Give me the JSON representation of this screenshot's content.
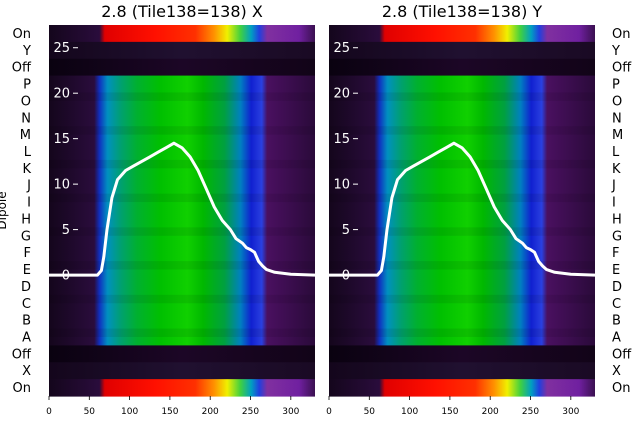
{
  "chart_data": [
    {
      "type": "heatmap",
      "title": "2.8 (Tile138=138) X",
      "ylabel": "Dipole",
      "dipole_rows": [
        "On",
        "Y",
        "Off",
        "P",
        "O",
        "N",
        "M",
        "L",
        "K",
        "J",
        "I",
        "H",
        "G",
        "F",
        "E",
        "D",
        "C",
        "B",
        "A",
        "Off",
        "X",
        "On"
      ],
      "xlim": [
        0,
        330
      ],
      "xticks": [
        0,
        50,
        100,
        150,
        200,
        250,
        300
      ],
      "overlay_ylim": [
        -13.3,
        27.5
      ],
      "overlay_yticks": [
        0,
        5,
        10,
        15,
        20,
        25
      ],
      "series": [
        {
          "name": "",
          "x": [
            0,
            60,
            65,
            68,
            72,
            78,
            85,
            95,
            105,
            115,
            125,
            135,
            145,
            155,
            165,
            175,
            185,
            195,
            205,
            215,
            225,
            232,
            240,
            245,
            250,
            255,
            260,
            265,
            270,
            280,
            300,
            330
          ],
          "y": [
            0,
            0,
            0.5,
            2,
            5,
            8.5,
            10.5,
            11.5,
            12,
            12.5,
            13,
            13.5,
            14,
            14.5,
            14,
            13,
            11.5,
            9.5,
            7.5,
            6,
            5,
            4,
            3.5,
            3,
            2.8,
            2.5,
            1.5,
            1,
            0.6,
            0.3,
            0.1,
            0
          ]
        }
      ]
    },
    {
      "type": "heatmap",
      "title": "2.8 (Tile138=138) Y",
      "dipole_rows": [
        "On",
        "Y",
        "Off",
        "P",
        "O",
        "N",
        "M",
        "L",
        "K",
        "J",
        "I",
        "H",
        "G",
        "F",
        "E",
        "D",
        "C",
        "B",
        "A",
        "Off",
        "X",
        "On"
      ],
      "xlim": [
        0,
        330
      ],
      "xticks": [
        0,
        50,
        100,
        150,
        200,
        250,
        300
      ],
      "overlay_ylim": [
        -13.3,
        27.5
      ],
      "overlay_yticks": [
        0,
        5,
        10,
        15,
        20,
        25
      ],
      "series": [
        {
          "name": "",
          "x": [
            0,
            60,
            65,
            68,
            72,
            78,
            85,
            95,
            105,
            115,
            125,
            135,
            145,
            155,
            165,
            175,
            185,
            195,
            205,
            215,
            225,
            232,
            240,
            245,
            250,
            255,
            260,
            265,
            270,
            280,
            300,
            330
          ],
          "y": [
            0,
            0,
            0.5,
            2,
            5,
            8.5,
            10.5,
            11.5,
            12,
            12.5,
            13,
            13.5,
            14,
            14.5,
            14,
            13,
            11.5,
            9.5,
            7.5,
            6,
            5,
            4,
            3.5,
            3,
            2.8,
            2.5,
            1.5,
            1,
            0.6,
            0.3,
            0.1,
            0
          ]
        }
      ]
    }
  ]
}
